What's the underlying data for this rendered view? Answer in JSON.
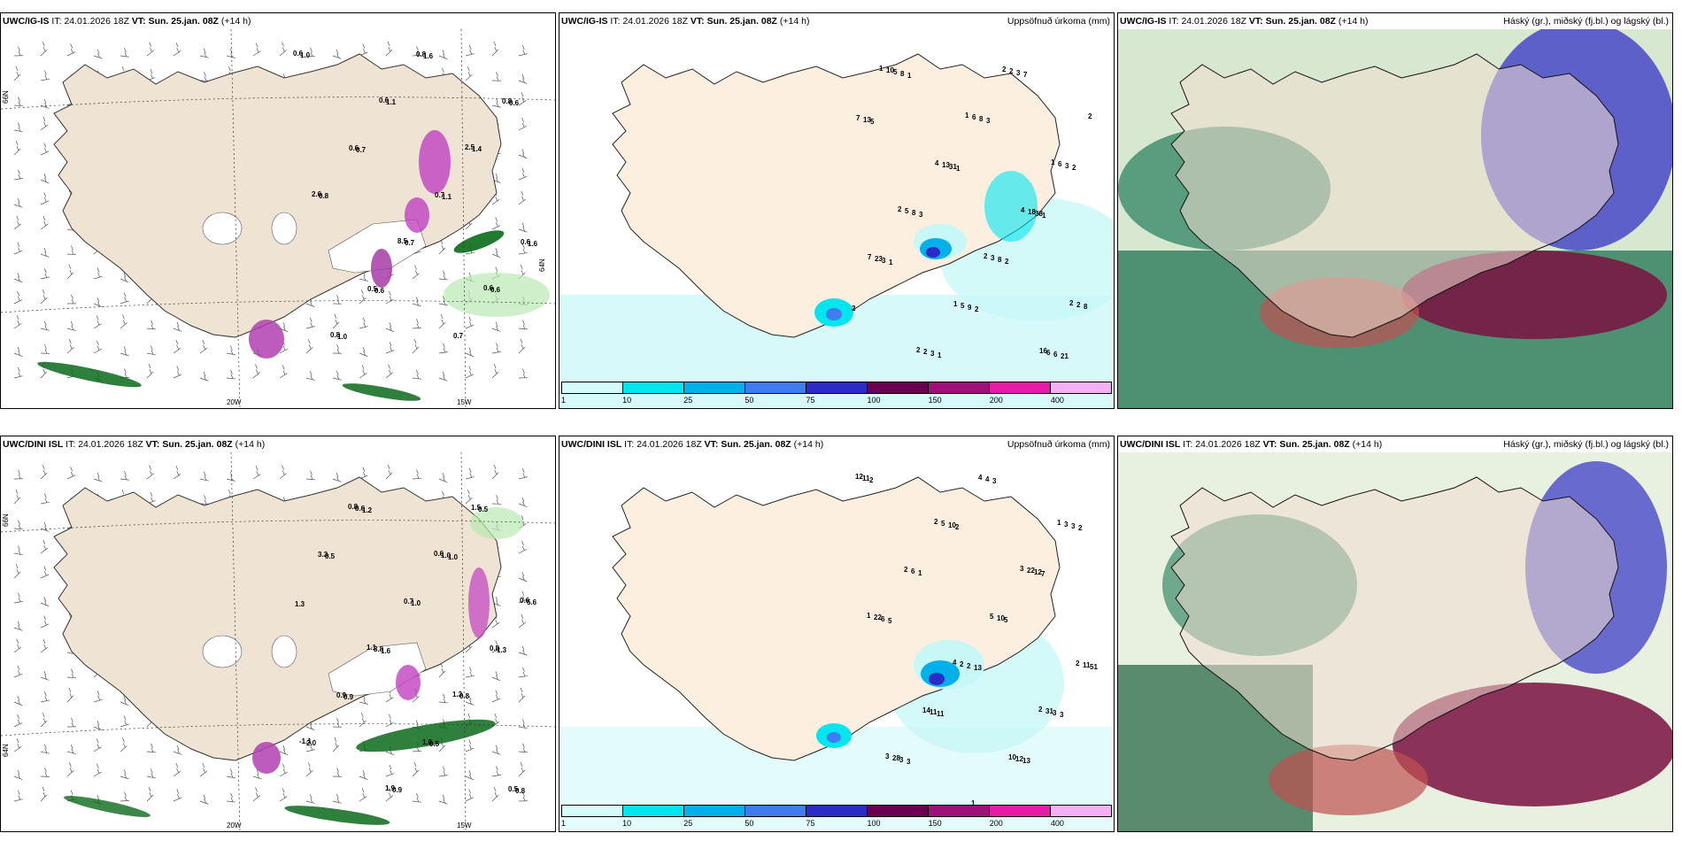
{
  "header": {
    "ig_model": "UWC/IG-IS",
    "dini_model": "UWC/DINI ISL",
    "it_prefix": "IT:",
    "it_value": "24.01.2026 18Z",
    "vt_prefix": "VT:",
    "vt_value": "Sun. 25.jan. 08Z",
    "lead": "(+14 h)"
  },
  "panel_titles": {
    "precip": "Uppsöfnuð úrkoma (mm)",
    "clouds": "Háský (gr.), miðský (fj.bl.) og lágský (bl.)"
  },
  "axes": {
    "lon_20w": "20W",
    "lon_15w": "15W",
    "lat_66n": "66N",
    "lat_64n": "64N"
  },
  "colorbar": {
    "labels": [
      "1",
      "10",
      "25",
      "50",
      "75",
      "100",
      "150",
      "200",
      "400"
    ],
    "colors": [
      "#d6fbfb",
      "#00e5ee",
      "#00b0e8",
      "#3d7df0",
      "#2b2bc8",
      "#6b0050",
      "#a0107a",
      "#e81aa8",
      "#f4b0f2"
    ]
  },
  "wind_panel_ig": {
    "labels": [
      "0.6",
      "0.6",
      "2.5",
      "2.6",
      "8.5",
      "0.6",
      "0.8",
      "0.8",
      "0.8",
      "0.6",
      "0.7",
      "0.6",
      "0.5",
      "0.7",
      "1.0",
      "1.1",
      "1.4",
      "0.8",
      "0.7",
      "0.6",
      "1.0",
      "1.6",
      "0.6",
      "0.7",
      "1.1",
      "1.6",
      "0.6"
    ]
  },
  "precip_panel_ig": {
    "labels": [
      "1",
      "1",
      "1",
      "2",
      "2",
      "2",
      "2",
      "2",
      "2",
      "4",
      "4",
      "7",
      "1",
      "16",
      "10",
      "6",
      "6",
      "5",
      "3",
      "2",
      "2",
      "2",
      "7",
      "13",
      "18",
      "23",
      "5",
      "6",
      "5",
      "8",
      "3",
      "8",
      "8",
      "8",
      "3",
      "3",
      "13",
      "31",
      "38",
      "3",
      "9",
      "6",
      "8",
      "3",
      "2",
      "3",
      "2",
      "2",
      "1",
      "7",
      "5",
      "1",
      "1",
      "1",
      "2",
      "21",
      "1"
    ]
  },
  "wind_panel_dini": {
    "labels": [
      "0.8",
      "0.6",
      "0.6",
      "1.1",
      "1.3",
      "-1.1",
      "1.9",
      "1.5",
      "3.3",
      "0.7",
      "0.8",
      "0.9",
      "1.0",
      "0.5",
      "0.6",
      "1.0",
      "5.6",
      "8.8",
      "0.8",
      "2.0",
      "0.9",
      "0.5",
      "0.5",
      "1.0",
      "1.3",
      "0.9",
      "0.5",
      "0.8",
      "1.2",
      "1.0",
      "1.3",
      "1.6"
    ]
  },
  "precip_panel_dini": {
    "labels": [
      "2",
      "3",
      "1",
      "4",
      "2",
      "3",
      "1",
      "1",
      "2",
      "5",
      "2",
      "14",
      "10",
      "12",
      "5",
      "22",
      "22",
      "2",
      "31",
      "28",
      "4",
      "3",
      "6",
      "10",
      "11",
      "11",
      "12",
      "11",
      "10",
      "12",
      "6",
      "2",
      "3",
      "3",
      "4",
      "3",
      "1",
      "5",
      "51",
      "11",
      "13",
      "2",
      "2",
      "7",
      "5",
      "13",
      "3",
      "3",
      "3",
      "2"
    ]
  }
}
